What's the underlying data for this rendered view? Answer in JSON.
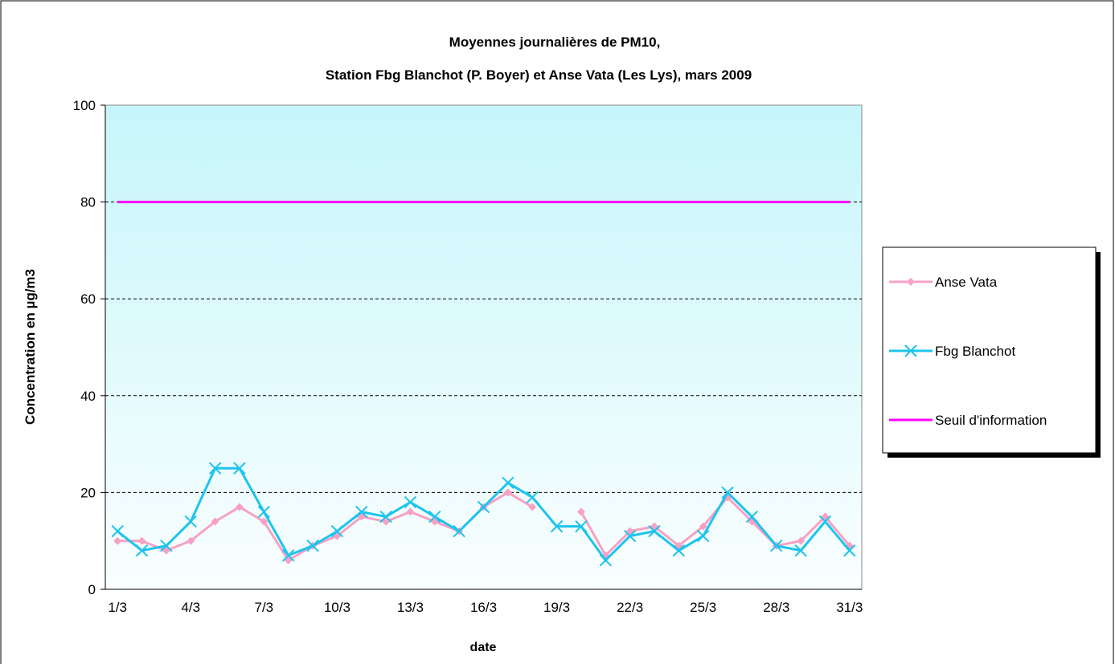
{
  "chart_data": {
    "type": "line",
    "title": [
      "Moyennes journalières de PM10,",
      "Station Fbg Blanchot (P. Boyer) et Anse Vata (Les Lys), mars 2009"
    ],
    "y_label": "Concentration en µg/m3",
    "x_label": "date",
    "categories": [
      "1/3",
      null,
      null,
      "4/3",
      null,
      null,
      "7/3",
      null,
      null,
      "10/3",
      null,
      null,
      "13/3",
      null,
      null,
      "16/3",
      null,
      null,
      "19/3",
      null,
      null,
      "22/3",
      null,
      null,
      "25/3",
      null,
      null,
      "28/3",
      null,
      null,
      "31/3"
    ],
    "series": [
      {
        "name": "Anse Vata",
        "color": "#f7a1c4",
        "marker": "diamond",
        "values": [
          10,
          10,
          8,
          10,
          14,
          17,
          14,
          6,
          9,
          11,
          15,
          14,
          16,
          14,
          12,
          17,
          20,
          17,
          null,
          16,
          7,
          12,
          13,
          9,
          13,
          19,
          14,
          9,
          10,
          15,
          9
        ]
      },
      {
        "name": "Fbg Blanchot",
        "color": "#1ec4ec",
        "marker": "x",
        "values": [
          12,
          8,
          9,
          14,
          25,
          25,
          16,
          7,
          9,
          12,
          16,
          15,
          18,
          15,
          12,
          17,
          22,
          19,
          13,
          13,
          6,
          11,
          12,
          8,
          11,
          20,
          15,
          9,
          8,
          14,
          8
        ]
      },
      {
        "name": "Seuil d'information",
        "color": "#ff00ff",
        "marker": "none",
        "values": [
          80,
          80,
          80,
          80,
          80,
          80,
          80,
          80,
          80,
          80,
          80,
          80,
          80,
          80,
          80,
          80,
          80,
          80,
          80,
          80,
          80,
          80,
          80,
          80,
          80,
          80,
          80,
          80,
          80,
          80,
          80
        ]
      }
    ],
    "ylim": [
      0,
      100
    ],
    "yticks": [
      0,
      20,
      40,
      60,
      80,
      100
    ],
    "grid": true
  }
}
